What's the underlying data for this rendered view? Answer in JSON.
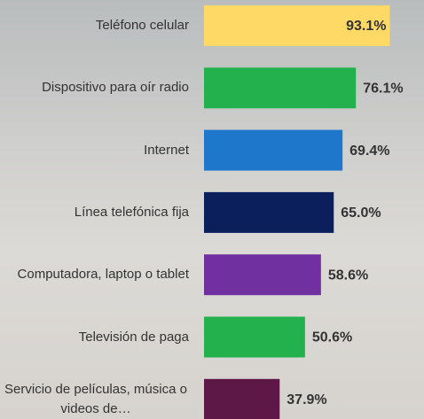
{
  "chart_data": {
    "type": "barh",
    "categories": [
      "Teléfono celular",
      "Dispositivo para oír radio",
      "Internet",
      "Línea telefónica fija",
      "Computadora, laptop o tablet",
      "Televisión de paga",
      "Servicio de películas, música o videos de…"
    ],
    "values": [
      93.1,
      76.1,
      69.4,
      65.0,
      58.6,
      50.6,
      37.9
    ],
    "value_labels": [
      "93.1%",
      "76.1%",
      "69.4%",
      "65.0%",
      "58.6%",
      "50.6%",
      "37.9%"
    ],
    "colors": [
      "#ffd966",
      "#22b14c",
      "#1f77cc",
      "#0b1f5c",
      "#7030a0",
      "#22b14c",
      "#5e1848"
    ],
    "xlim": [
      0,
      110
    ]
  }
}
